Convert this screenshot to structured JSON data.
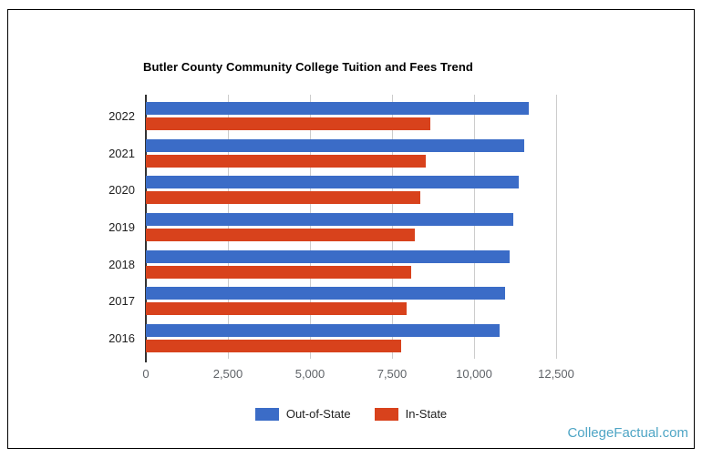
{
  "chart_data": {
    "type": "bar",
    "orientation": "horizontal",
    "title": "Butler County Community College Tuition and Fees Trend",
    "categories": [
      "2022",
      "2021",
      "2020",
      "2019",
      "2018",
      "2017",
      "2016"
    ],
    "series": [
      {
        "name": "Out-of-State",
        "color": "#3b6cc7",
        "values": [
          11670,
          11535,
          11370,
          11205,
          11070,
          10935,
          10770
        ]
      },
      {
        "name": "In-State",
        "color": "#d8421c",
        "values": [
          8670,
          8535,
          8370,
          8205,
          8070,
          7935,
          7770
        ]
      }
    ],
    "x_ticks": [
      {
        "value": 0,
        "label": "0"
      },
      {
        "value": 2500,
        "label": "2,500"
      },
      {
        "value": 5000,
        "label": "5,000"
      },
      {
        "value": 7500,
        "label": "7,500"
      },
      {
        "value": 10000,
        "label": "10,000"
      },
      {
        "value": 12500,
        "label": "12,500"
      }
    ],
    "xlim": [
      0,
      12500
    ],
    "grid": true,
    "legend_position": "bottom"
  },
  "colors": {
    "gridline": "#cccccc",
    "axis": "#333333",
    "tick_label": "#5f6368",
    "category_label": "#1f1f1f",
    "title": "#000000",
    "frame_border": "#000000",
    "watermark": "#4ea5c5"
  },
  "watermark": {
    "text": "CollegeFactual.com"
  }
}
